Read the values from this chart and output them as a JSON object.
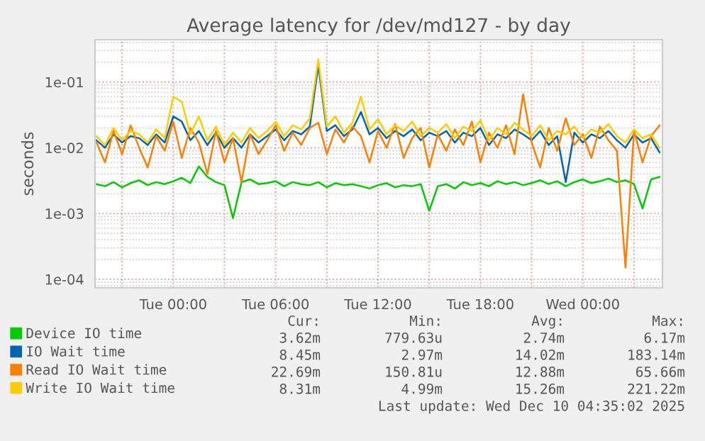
{
  "chart_data": {
    "type": "line",
    "title": "Average latency for /dev/md127 - by day",
    "ylabel": "seconds",
    "log": "y",
    "grid": true,
    "legend": "bottom",
    "marker": "none",
    "line_style": "solid",
    "xlim": [
      "2025-12-08T19:25",
      "2025-12-10T04:40"
    ],
    "ylim": [
      7.4e-05,
      0.44
    ],
    "xticks": [
      {
        "value": "2025-12-08T21:00",
        "label": null
      },
      {
        "value": "2025-12-09T00:00",
        "label": "Tue 00:00"
      },
      {
        "value": "2025-12-09T03:00",
        "label": null
      },
      {
        "value": "2025-12-09T06:00",
        "label": "Tue 06:00"
      },
      {
        "value": "2025-12-09T09:00",
        "label": null
      },
      {
        "value": "2025-12-09T12:00",
        "label": "Tue 12:00"
      },
      {
        "value": "2025-12-09T15:00",
        "label": null
      },
      {
        "value": "2025-12-09T18:00",
        "label": "Tue 18:00"
      },
      {
        "value": "2025-12-09T21:00",
        "label": null
      },
      {
        "value": "2025-12-10T00:00",
        "label": "Wed 00:00"
      },
      {
        "value": "2025-12-10T03:00",
        "label": null
      }
    ],
    "yticks": [
      {
        "value": 0.0001,
        "label": "1e-04"
      },
      {
        "value": 0.001,
        "label": "1e-03"
      },
      {
        "value": 0.01,
        "label": "1e-02"
      },
      {
        "value": 0.1,
        "label": "1e-01"
      }
    ],
    "x": [
      "2025-12-08T19:30",
      "2025-12-08T20:00",
      "2025-12-08T20:30",
      "2025-12-08T21:00",
      "2025-12-08T21:30",
      "2025-12-08T22:00",
      "2025-12-08T22:30",
      "2025-12-08T23:00",
      "2025-12-08T23:30",
      "2025-12-09T00:00",
      "2025-12-09T00:30",
      "2025-12-09T01:00",
      "2025-12-09T01:30",
      "2025-12-09T02:00",
      "2025-12-09T02:30",
      "2025-12-09T03:00",
      "2025-12-09T03:30",
      "2025-12-09T04:00",
      "2025-12-09T04:30",
      "2025-12-09T05:00",
      "2025-12-09T05:30",
      "2025-12-09T06:00",
      "2025-12-09T06:30",
      "2025-12-09T07:00",
      "2025-12-09T07:30",
      "2025-12-09T08:00",
      "2025-12-09T08:30",
      "2025-12-09T09:00",
      "2025-12-09T09:30",
      "2025-12-09T10:00",
      "2025-12-09T10:30",
      "2025-12-09T11:00",
      "2025-12-09T11:30",
      "2025-12-09T12:00",
      "2025-12-09T12:30",
      "2025-12-09T13:00",
      "2025-12-09T13:30",
      "2025-12-09T14:00",
      "2025-12-09T14:30",
      "2025-12-09T15:00",
      "2025-12-09T15:30",
      "2025-12-09T16:00",
      "2025-12-09T16:30",
      "2025-12-09T17:00",
      "2025-12-09T17:30",
      "2025-12-09T18:00",
      "2025-12-09T18:30",
      "2025-12-09T19:00",
      "2025-12-09T19:30",
      "2025-12-09T20:00",
      "2025-12-09T20:30",
      "2025-12-09T21:00",
      "2025-12-09T21:30",
      "2025-12-09T22:00",
      "2025-12-09T22:30",
      "2025-12-09T23:00",
      "2025-12-09T23:30",
      "2025-12-10T00:00",
      "2025-12-10T00:30",
      "2025-12-10T01:00",
      "2025-12-10T01:30",
      "2025-12-10T02:00",
      "2025-12-10T02:30",
      "2025-12-10T03:00",
      "2025-12-10T03:30",
      "2025-12-10T04:00",
      "2025-12-10T04:30"
    ],
    "series": [
      {
        "name": "Device IO time",
        "color": "#00cc00",
        "values": [
          0.0028,
          0.0026,
          0.003,
          0.0025,
          0.0029,
          0.0032,
          0.0027,
          0.003,
          0.0028,
          0.0031,
          0.0035,
          0.0029,
          0.0052,
          0.0036,
          0.003,
          0.0027,
          0.00085,
          0.003,
          0.0033,
          0.0028,
          0.0029,
          0.0031,
          0.0026,
          0.003,
          0.0028,
          0.0027,
          0.003,
          0.0025,
          0.0029,
          0.0027,
          0.0028,
          0.0026,
          0.0024,
          0.0027,
          0.0029,
          0.0025,
          0.0027,
          0.0026,
          0.0028,
          0.0011,
          0.0026,
          0.0028,
          0.0024,
          0.003,
          0.0027,
          0.0029,
          0.0026,
          0.0031,
          0.0028,
          0.003,
          0.0027,
          0.0029,
          0.0032,
          0.0028,
          0.0031,
          0.0026,
          0.003,
          0.0033,
          0.0029,
          0.0031,
          0.0034,
          0.003,
          0.0032,
          0.0028,
          0.0012,
          0.0033,
          0.0036
        ]
      },
      {
        "name": "IO Wait time",
        "color": "#0066b3",
        "values": [
          0.013,
          0.01,
          0.016,
          0.012,
          0.015,
          0.014,
          0.011,
          0.016,
          0.012,
          0.03,
          0.025,
          0.013,
          0.018,
          0.011,
          0.017,
          0.01,
          0.014,
          0.01,
          0.016,
          0.012,
          0.015,
          0.019,
          0.013,
          0.018,
          0.016,
          0.021,
          0.18,
          0.018,
          0.022,
          0.015,
          0.019,
          0.035,
          0.016,
          0.02,
          0.014,
          0.018,
          0.015,
          0.019,
          0.013,
          0.017,
          0.015,
          0.018,
          0.012,
          0.017,
          0.015,
          0.02,
          0.011,
          0.016,
          0.014,
          0.019,
          0.016,
          0.013,
          0.018,
          0.011,
          0.015,
          0.003,
          0.017,
          0.012,
          0.016,
          0.014,
          0.018,
          0.013,
          0.01,
          0.016,
          0.012,
          0.014,
          0.0085
        ]
      },
      {
        "name": "Read IO Wait time",
        "color": "#ff8000",
        "values": [
          0.012,
          0.006,
          0.018,
          0.008,
          0.022,
          0.01,
          0.005,
          0.015,
          0.009,
          0.025,
          0.007,
          0.02,
          0.012,
          0.004,
          0.018,
          0.006,
          0.014,
          0.003,
          0.016,
          0.008,
          0.013,
          0.022,
          0.009,
          0.017,
          0.011,
          0.02,
          0.024,
          0.008,
          0.019,
          0.012,
          0.021,
          0.015,
          0.006,
          0.018,
          0.01,
          0.023,
          0.007,
          0.014,
          0.02,
          0.005,
          0.016,
          0.009,
          0.019,
          0.011,
          0.025,
          0.006,
          0.017,
          0.01,
          0.022,
          0.008,
          0.065,
          0.012,
          0.005,
          0.02,
          0.009,
          0.028,
          0.011,
          0.016,
          0.007,
          0.021,
          0.013,
          0.009,
          0.00015,
          0.018,
          0.006,
          0.015,
          0.022
        ]
      },
      {
        "name": "Write IO Wait time",
        "color": "#ffcc00",
        "values": [
          0.015,
          0.011,
          0.02,
          0.013,
          0.018,
          0.016,
          0.012,
          0.019,
          0.014,
          0.06,
          0.05,
          0.016,
          0.03,
          0.013,
          0.021,
          0.011,
          0.017,
          0.012,
          0.02,
          0.014,
          0.018,
          0.025,
          0.015,
          0.022,
          0.019,
          0.028,
          0.22,
          0.021,
          0.03,
          0.017,
          0.024,
          0.06,
          0.019,
          0.027,
          0.016,
          0.022,
          0.018,
          0.025,
          0.015,
          0.02,
          0.017,
          0.023,
          0.014,
          0.021,
          0.018,
          0.026,
          0.013,
          0.02,
          0.016,
          0.024,
          0.019,
          0.015,
          0.022,
          0.013,
          0.018,
          0.016,
          0.021,
          0.014,
          0.019,
          0.017,
          0.023,
          0.015,
          0.012,
          0.019,
          0.014,
          0.016,
          0.01
        ]
      }
    ],
    "annotations": [
      "Cur:",
      "Min:",
      "Avg:",
      "Max:",
      "3.62m",
      "779.63u",
      "2.74m",
      "6.17m",
      "8.45m",
      "2.97m",
      "14.02m",
      "183.14m",
      "22.69m",
      "150.81u",
      "12.88m",
      "65.66m",
      "8.31m",
      "4.99m",
      "15.26m",
      "221.22m",
      "Last update: Wed Dec 10 04:35:02 2025"
    ]
  }
}
